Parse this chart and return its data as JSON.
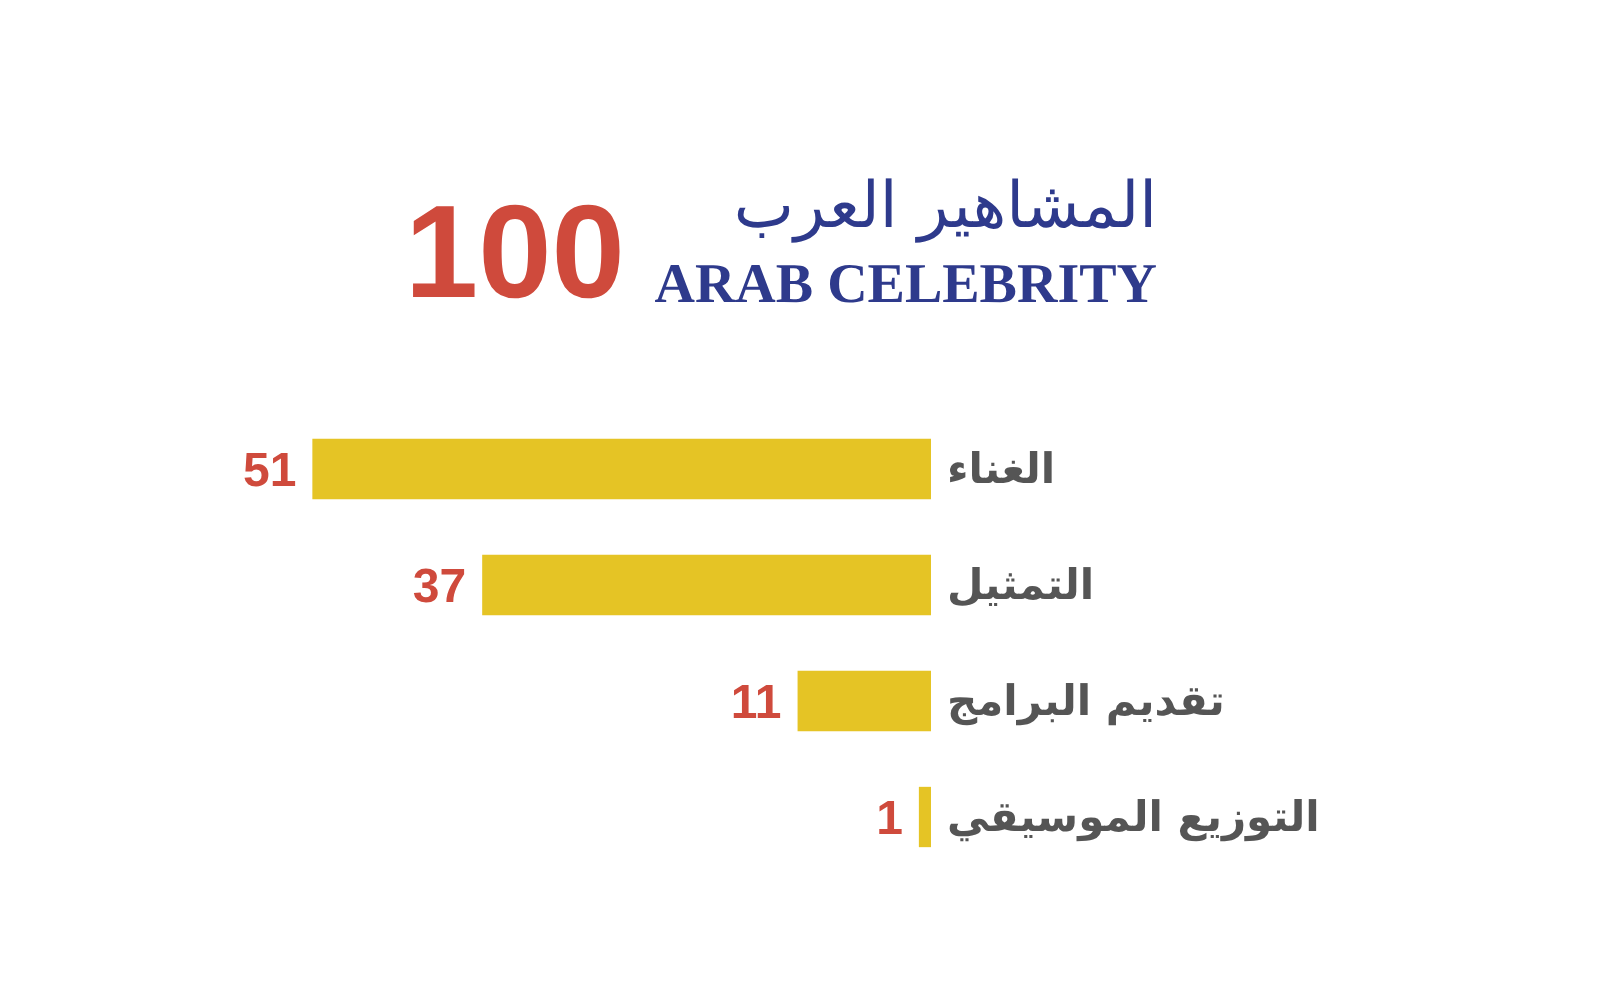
{
  "chart_data": {
    "type": "bar",
    "orientation": "horizontal",
    "title": "المشاهير العرب",
    "subtitle": "ARAB CELEBRITY",
    "annotations": [
      "100"
    ],
    "categories": [
      "الغناء",
      "التمثيل",
      "تقديم البرامج",
      "التوزيع الموسيقي"
    ],
    "values": [
      51,
      37,
      11,
      1
    ],
    "color": "#e5c425",
    "data_labels": true
  }
}
